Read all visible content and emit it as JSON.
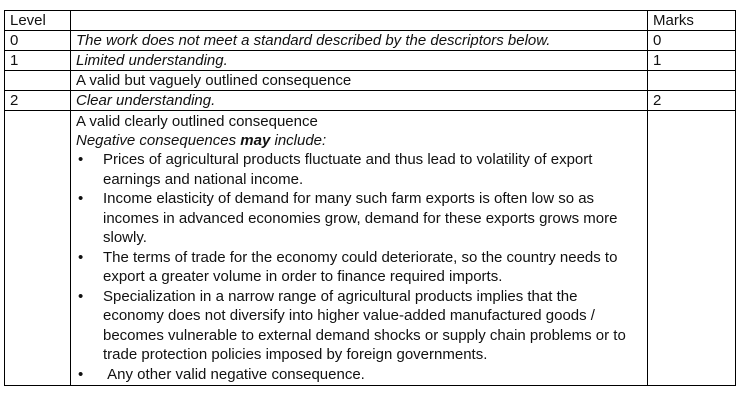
{
  "header": {
    "level": "Level",
    "description": "",
    "marks": "Marks"
  },
  "rows": [
    {
      "level": "0",
      "description": "The work does not meet a standard described by the descriptors below.",
      "marks": "0"
    },
    {
      "level": "1",
      "description": "Limited understanding.",
      "marks": "1"
    },
    {
      "level": "",
      "description": "A valid but vaguely outlined consequence",
      "marks": ""
    },
    {
      "level": "2",
      "description": "Clear understanding.",
      "marks": "2"
    }
  ],
  "detail": {
    "intro": "A valid clearly outlined consequence",
    "lead_before": "Negative consequences ",
    "lead_emph": "may",
    "lead_after": " include:",
    "bullet_symbol": "•",
    "points": [
      "Prices of agricultural products fluctuate and thus lead to volatility of export earnings and national income.",
      "Income elasticity of demand for many such farm exports is often low so as incomes in advanced economies grow, demand for these exports grows more slowly.",
      "The terms of trade for the economy could deteriorate, so the country needs to export a greater volume in order to finance required imports.",
      "Specialization in a narrow range of agricultural products implies that the economy does not diversify into higher value-added manufactured goods / becomes vulnerable to external demand shocks or supply chain problems or to trade protection policies imposed by foreign governments.",
      " Any other valid negative consequence."
    ]
  }
}
